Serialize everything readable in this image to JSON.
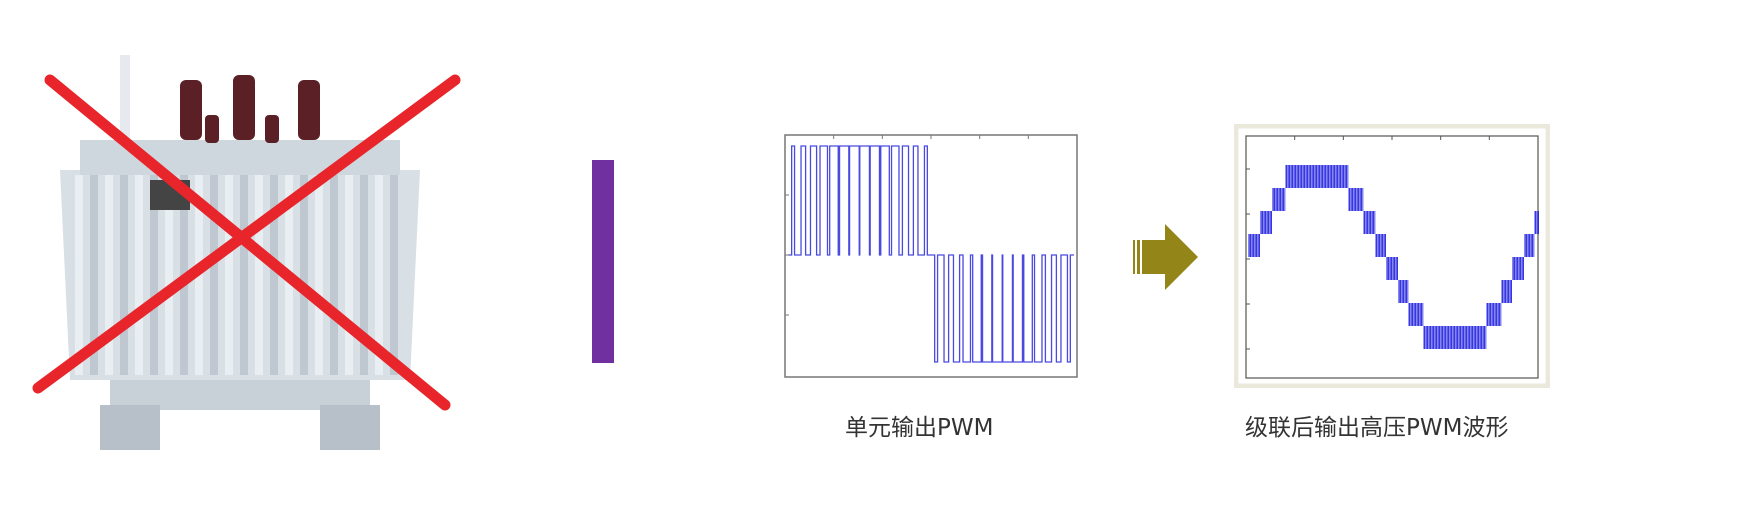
{
  "diagram": {
    "left_item": {
      "icon": "transformer-crossed-out-icon",
      "cross_color": "#e8252b"
    },
    "separator_color": "#7030a0",
    "unit_waveform": {
      "caption": "单元输出PWM",
      "line_color": "#4a4ae0"
    },
    "arrow": {
      "icon": "arrow-right-icon",
      "color": "#948518"
    },
    "cascaded_waveform": {
      "caption": "级联后输出高压PWM波形",
      "line_color": "#2020e0",
      "levels": 9
    }
  }
}
